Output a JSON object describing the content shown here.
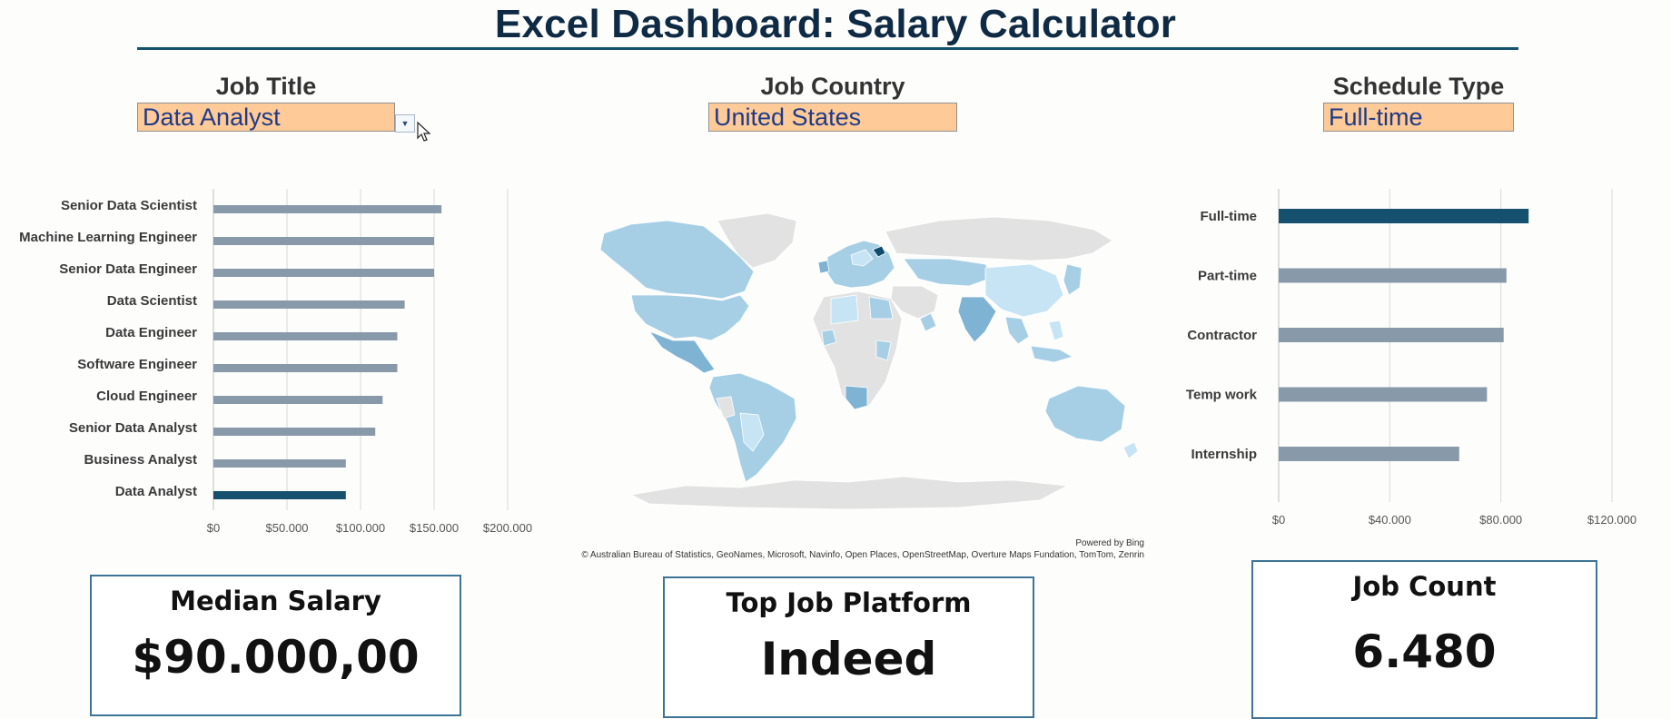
{
  "dashboard": {
    "title": "Excel Dashboard: Salary Calculator"
  },
  "filters": {
    "job_title": {
      "label": "Job Title",
      "value": "Data Analyst"
    },
    "job_country": {
      "label": "Job Country",
      "value": "United States"
    },
    "schedule_type": {
      "label": "Schedule Type",
      "value": "Full-time"
    }
  },
  "map": {
    "powered_by": "Powered by Bing",
    "attribution": "© Australian Bureau of Statistics, GeoNames, Microsoft, Navinfo, Open Places, OpenStreetMap, Overture Maps Fundation, TomTom, Zenrin",
    "colors": {
      "land": "#e2e2e2",
      "light": "#c7e4f4",
      "mid": "#a6cfe6",
      "dark": "#7fb3d4",
      "selected": "#0f4c6d"
    }
  },
  "kpis": {
    "median_salary": {
      "label": "Median Salary",
      "value": "$90.000,00"
    },
    "top_platform": {
      "label": "Top Job Platform",
      "value": "Indeed"
    },
    "job_count": {
      "label": "Job Count",
      "value": "6.480"
    }
  },
  "colors": {
    "bar": "#8899aa",
    "highlight": "#15506e",
    "grid": "#d9d9d9"
  },
  "chart_data": [
    {
      "type": "bar",
      "orientation": "horizontal",
      "categories": [
        "Senior Data Scientist",
        "Machine Learning Engineer",
        "Senior Data Engineer",
        "Data Scientist",
        "Data Engineer",
        "Software Engineer",
        "Cloud Engineer",
        "Senior Data Analyst",
        "Business Analyst",
        "Data Analyst"
      ],
      "values": [
        155000,
        150000,
        150000,
        130000,
        125000,
        125000,
        115000,
        110000,
        90000,
        90000
      ],
      "highlight": "Data Analyst",
      "xlim": [
        0,
        200000
      ],
      "ticks": [
        0,
        50000,
        100000,
        150000,
        200000
      ],
      "tick_labels": [
        "$0",
        "$50.000",
        "$100.000",
        "$150.000",
        "$200.000"
      ],
      "grid": true
    },
    {
      "type": "bar",
      "orientation": "horizontal",
      "categories": [
        "Full-time",
        "Part-time",
        "Contractor",
        "Temp work",
        "Internship"
      ],
      "values": [
        90000,
        82000,
        81000,
        75000,
        65000
      ],
      "highlight": "Full-time",
      "xlim": [
        0,
        120000
      ],
      "ticks": [
        0,
        40000,
        80000,
        120000
      ],
      "tick_labels": [
        "$0",
        "$40.000",
        "$80.000",
        "$120.000"
      ],
      "grid": true
    }
  ]
}
